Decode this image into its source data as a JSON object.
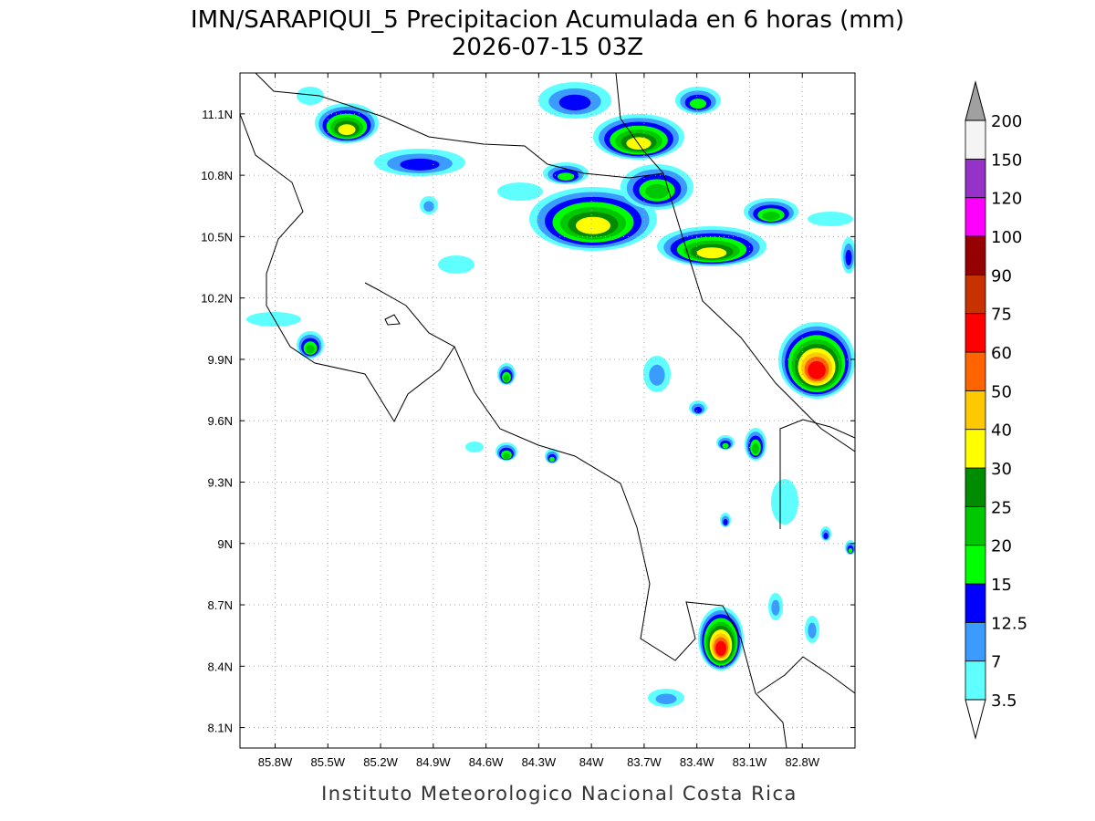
{
  "title": "IMN/SARAPIQUI_5 Precipitacion Acumulada en 6 horas (mm)",
  "subtitle": "2026-07-15 03Z",
  "map": {
    "lonlim": [
      -86.0,
      -82.5
    ],
    "latlim": [
      8.0,
      11.3
    ],
    "grid": true,
    "lat_ticks": [
      {
        "value": 11.1,
        "label": "11.1N"
      },
      {
        "value": 10.8,
        "label": "10.8N"
      },
      {
        "value": 10.5,
        "label": "10.5N"
      },
      {
        "value": 10.2,
        "label": "10.2N"
      },
      {
        "value": 9.9,
        "label": "9.9N"
      },
      {
        "value": 9.6,
        "label": "9.6N"
      },
      {
        "value": 9.3,
        "label": "9.3N"
      },
      {
        "value": 9.0,
        "label": "9N"
      },
      {
        "value": 8.7,
        "label": "8.7N"
      },
      {
        "value": 8.4,
        "label": "8.4N"
      },
      {
        "value": 8.1,
        "label": "8.1N"
      }
    ],
    "lon_ticks": [
      {
        "value": -85.8,
        "label": "85.8W"
      },
      {
        "value": -85.5,
        "label": "85.5W"
      },
      {
        "value": -85.2,
        "label": "85.2W"
      },
      {
        "value": -84.9,
        "label": "84.9W"
      },
      {
        "value": -84.6,
        "label": "84.6W"
      },
      {
        "value": -84.3,
        "label": "84.3W"
      },
      {
        "value": -84.0,
        "label": "84W"
      },
      {
        "value": -83.7,
        "label": "83.7W"
      },
      {
        "value": -83.4,
        "label": "83.4W"
      },
      {
        "value": -83.1,
        "label": "83.1W"
      },
      {
        "value": -82.8,
        "label": "82.8W"
      }
    ]
  },
  "colorbar": {
    "levels": [
      3.5,
      7,
      12.5,
      15,
      20,
      25,
      30,
      40,
      50,
      60,
      75,
      90,
      100,
      120,
      150,
      200
    ],
    "colors": [
      "#5fffff",
      "#3c9bff",
      "#0000ff",
      "#00ff00",
      "#00c800",
      "#008c00",
      "#ffff00",
      "#ffc800",
      "#ff6400",
      "#ff0000",
      "#c83200",
      "#960000",
      "#ff00ff",
      "#9632c8",
      "#f4f4f4"
    ],
    "below_color": "#ffffff",
    "above_color": "#a0a0a0"
  },
  "footer": "Instituto Meteorologico Nacional Costa Rica"
}
